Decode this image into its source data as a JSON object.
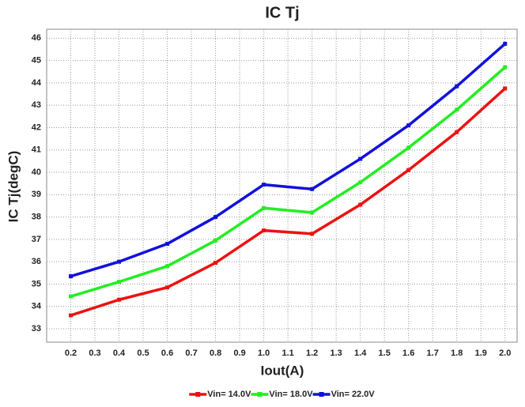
{
  "chart_data": {
    "type": "line",
    "title": "IC Tj",
    "x_label": "Iout(A)",
    "y_label": "IC Tj(degC)",
    "x": [
      0.2,
      0.4,
      0.6,
      0.8,
      1.0,
      1.2,
      1.4,
      1.6,
      1.8,
      2.0
    ],
    "series": [
      {
        "name": "Vin= 14.0V",
        "color": "#ee1111",
        "values": [
          33.6,
          34.3,
          34.85,
          35.95,
          37.4,
          37.25,
          38.55,
          40.1,
          41.8,
          43.75
        ]
      },
      {
        "name": "Vin= 18.0V",
        "color": "#22ee22",
        "values": [
          34.45,
          35.1,
          35.8,
          36.95,
          38.4,
          38.2,
          39.55,
          41.1,
          42.8,
          44.7
        ]
      },
      {
        "name": "Vin= 22.0V",
        "color": "#1111dd",
        "values": [
          35.35,
          36.0,
          36.8,
          38.0,
          39.45,
          39.25,
          40.6,
          42.1,
          43.85,
          45.75
        ]
      }
    ],
    "xlim": [
      0.1,
      2.05
    ],
    "xticks": [
      0.2,
      0.3,
      0.4,
      0.5,
      0.6,
      0.7,
      0.8,
      0.9,
      {
        "value": 1,
        "label": "1.0"
      },
      1.1,
      1.2,
      1.3,
      1.4,
      1.5,
      1.6,
      1.7,
      1.8,
      1.9,
      {
        "value": 2,
        "label": "2.0"
      }
    ],
    "ylim": [
      32.4,
      46.4
    ],
    "yticks": [
      33,
      34,
      35,
      36,
      37,
      38,
      39,
      40,
      41,
      42,
      43,
      44,
      45,
      46
    ],
    "grid": true,
    "legend": "bottom"
  }
}
